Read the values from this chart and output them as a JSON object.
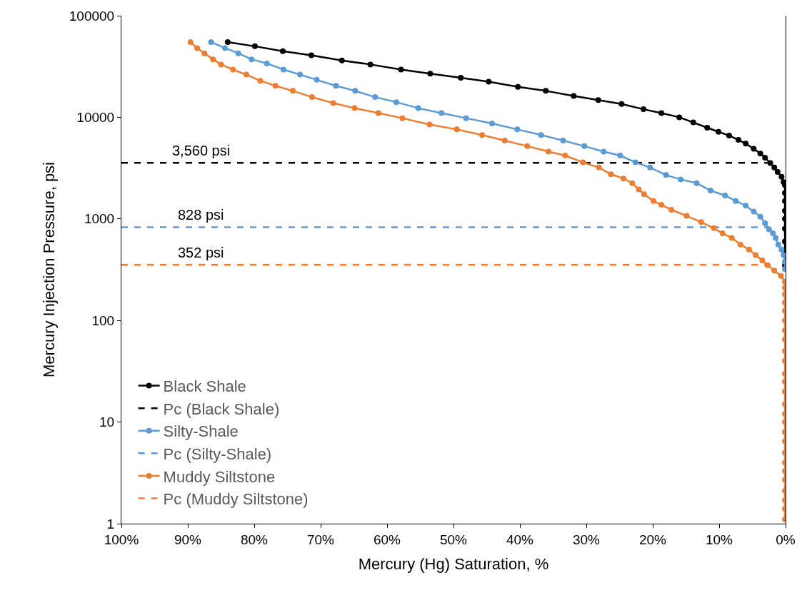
{
  "chart_data": {
    "type": "line",
    "xlabel": "Mercury (Hg) Saturation, %",
    "ylabel": "Mercury Injection Pressure, psi",
    "log": "y",
    "grid": false,
    "legend": "bottom left",
    "marker": "circle",
    "xlim": [
      100,
      0
    ],
    "xticks": [
      {
        "value": 100,
        "label": "100%"
      },
      {
        "value": 90,
        "label": "90%"
      },
      {
        "value": 80,
        "label": "80%"
      },
      {
        "value": 70,
        "label": "70%"
      },
      {
        "value": 60,
        "label": "60%"
      },
      {
        "value": 50,
        "label": "50%"
      },
      {
        "value": 40,
        "label": "40%"
      },
      {
        "value": 30,
        "label": "30%"
      },
      {
        "value": 20,
        "label": "20%"
      },
      {
        "value": 10,
        "label": "10%"
      },
      {
        "value": 0,
        "label": "0%"
      }
    ],
    "ylim": [
      1,
      100000
    ],
    "yticks": [
      1,
      10,
      100,
      1000,
      10000,
      100000
    ],
    "series": [
      {
        "name": "Black Shale",
        "color": "#000000",
        "line_style": "solid",
        "x": [
          84.0,
          79.9,
          75.7,
          71.4,
          66.8,
          62.5,
          57.9,
          53.5,
          48.9,
          44.7,
          40.3,
          36.1,
          31.9,
          28.2,
          24.7,
          21.4,
          18.7,
          16.0,
          13.9,
          11.8,
          10.1,
          8.5,
          7.1,
          6.0,
          4.8,
          3.8,
          3.1,
          2.3,
          1.7,
          1.2,
          0.6,
          0.3,
          0.1,
          0.1,
          0.1,
          0.1,
          0.1,
          0.1,
          0.1,
          0.1,
          0.1
        ],
        "values": [
          55000,
          50000,
          44700,
          40700,
          36300,
          33100,
          29500,
          26900,
          24500,
          22400,
          19900,
          18200,
          16200,
          14800,
          13500,
          12000,
          11000,
          10000,
          8900,
          7900,
          7200,
          6600,
          6000,
          5500,
          4900,
          4400,
          4000,
          3550,
          3200,
          2900,
          2600,
          2300,
          2150,
          1800,
          1500,
          1200,
          1000,
          800,
          600,
          450,
          350
        ]
      },
      {
        "name": "Pc (Black Shale)",
        "color": "#000000",
        "marker": "none",
        "line_style": "dashed",
        "x": [
          100,
          2
        ],
        "values": [
          3560,
          3560
        ]
      },
      {
        "name": "Silty-Shale",
        "color": "#5b9bd5",
        "line_style": "solid",
        "x": [
          86.5,
          84.4,
          82.4,
          80.4,
          78.1,
          75.6,
          73.1,
          70.6,
          67.7,
          64.8,
          61.8,
          58.6,
          55.3,
          51.8,
          48.1,
          44.2,
          40.4,
          36.8,
          33.5,
          30.3,
          27.4,
          24.9,
          22.6,
          20.4,
          18.0,
          15.8,
          13.4,
          11.3,
          9.1,
          7.5,
          6.0,
          4.8,
          3.8,
          3.1,
          2.5,
          1.9,
          1.5,
          1.1,
          0.6,
          0.3,
          0.1,
          0.1
        ],
        "values": [
          55000,
          48000,
          42700,
          37200,
          33900,
          29500,
          26300,
          23400,
          20400,
          18200,
          15800,
          14100,
          12300,
          11000,
          9800,
          8700,
          7600,
          6700,
          5900,
          5200,
          4600,
          4200,
          3600,
          3200,
          2700,
          2450,
          2250,
          1900,
          1700,
          1500,
          1350,
          1180,
          1050,
          910,
          790,
          720,
          650,
          560,
          500,
          440,
          380,
          320
        ]
      },
      {
        "name": "Pc (Silty-Shale)",
        "color": "#5b9bd5",
        "marker": "none",
        "line_style": "dashed",
        "x": [
          100,
          2
        ],
        "values": [
          828,
          828
        ]
      },
      {
        "name": "Muddy Siltstone",
        "color": "#ed7d31",
        "line_style": "solid",
        "x": [
          89.6,
          88.6,
          87.5,
          86.2,
          85.0,
          83.2,
          81.2,
          79.1,
          76.8,
          74.2,
          71.3,
          68.1,
          64.9,
          61.3,
          57.7,
          53.6,
          49.5,
          45.7,
          42.3,
          38.9,
          35.7,
          33.2,
          30.5,
          28.1,
          26.3,
          24.4,
          23.1,
          22.1,
          21.3,
          19.9,
          18.7,
          17.2,
          14.9,
          12.7,
          10.8,
          9.5,
          8.1,
          6.8,
          5.5,
          4.5,
          3.5,
          2.7,
          1.7,
          0.7,
          0.1,
          0.1,
          0.1,
          0.1,
          0.1,
          0.1,
          0.1,
          0.1,
          0.1,
          0.1,
          0.1,
          0.1,
          0.1,
          0.1,
          0.1,
          0.1,
          0.1,
          0.1,
          0.1,
          0.1,
          0.1,
          0.1,
          0.1,
          0.1,
          0.1,
          0.1
        ],
        "values": [
          55000,
          48000,
          42700,
          37200,
          33100,
          29500,
          26300,
          22900,
          20400,
          18200,
          15800,
          13800,
          12300,
          11000,
          9800,
          8500,
          7600,
          6700,
          5900,
          5200,
          4600,
          4200,
          3600,
          3200,
          2750,
          2500,
          2250,
          1950,
          1750,
          1500,
          1380,
          1230,
          1070,
          930,
          810,
          720,
          650,
          560,
          500,
          440,
          390,
          350,
          310,
          275,
          240,
          210,
          180,
          150,
          125,
          100,
          80,
          65,
          50,
          40,
          30,
          25,
          20,
          15,
          12,
          10,
          8,
          6.5,
          5,
          4,
          3.3,
          2.7,
          2.1,
          1.7,
          1.4,
          1.1
        ]
      },
      {
        "name": "Pc (Muddy Siltstone)",
        "color": "#ed7d31",
        "marker": "none",
        "line_style": "dashed",
        "x": [
          100,
          2
        ],
        "values": [
          352,
          352
        ]
      }
    ],
    "annotations": [
      {
        "text": "3,560 psi",
        "y": 3560
      },
      {
        "text": "828 psi",
        "y": 828
      },
      {
        "text": "352 psi",
        "y": 352
      }
    ]
  }
}
